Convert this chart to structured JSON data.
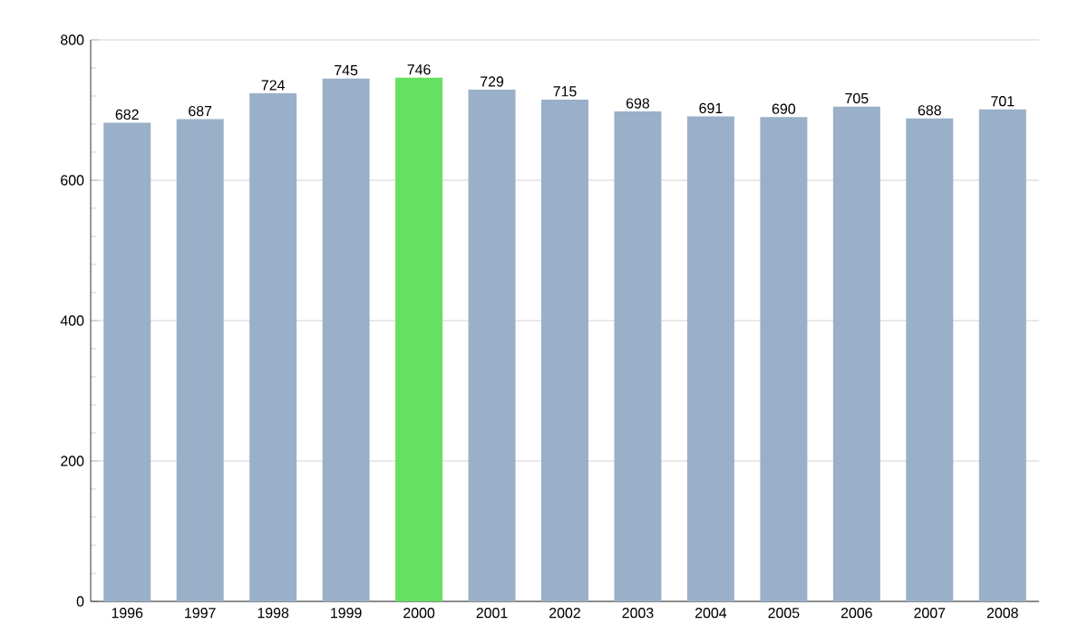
{
  "chart_data": {
    "type": "bar",
    "categories": [
      "1996",
      "1997",
      "1998",
      "1999",
      "2000",
      "2001",
      "2002",
      "2003",
      "2004",
      "2005",
      "2006",
      "2007",
      "2008"
    ],
    "values": [
      682,
      687,
      724,
      745,
      746,
      729,
      715,
      698,
      691,
      690,
      705,
      688,
      701
    ],
    "colors": [
      "#9ab0c9",
      "#9ab0c9",
      "#9ab0c9",
      "#9ab0c9",
      "#66e060",
      "#9ab0c9",
      "#9ab0c9",
      "#9ab0c9",
      "#9ab0c9",
      "#9ab0c9",
      "#9ab0c9",
      "#9ab0c9",
      "#9ab0c9"
    ],
    "ylim": [
      0,
      800
    ],
    "yticks": [
      0,
      200,
      400,
      600,
      800
    ],
    "grid": "y",
    "data_labels": true
  }
}
